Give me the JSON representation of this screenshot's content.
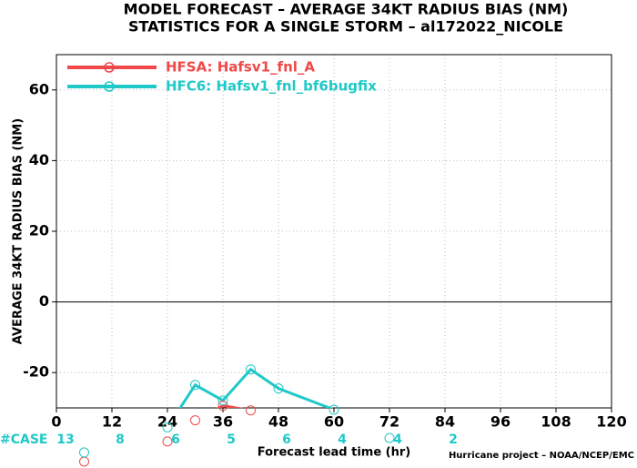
{
  "chart_data": {
    "type": "line",
    "title": "MODEL FORECAST – AVERAGE 34KT RADIUS BIAS (NM)",
    "subtitle": "STATISTICS FOR A SINGLE STORM – al172022_NICOLE",
    "x_label": "Forecast lead time (hr)",
    "y_label": "AVERAGE 34KT RADIUS BIAS (NM)",
    "footer": "Hurricane project – NOAA/NCEP/EMC",
    "x": [
      6,
      24,
      30,
      36,
      42,
      48,
      60,
      72
    ],
    "series": [
      {
        "name": "HFSA: Hafsv1_fnl_A",
        "color": "#f04848",
        "values": [
          -45.2,
          -39.5,
          -33.5,
          -29.4,
          -30.7,
          null,
          null,
          null
        ]
      },
      {
        "name": "HFC6: Hafsv1_fnl_bf6bugfix",
        "color": "#20c8c8",
        "values": [
          -42.6,
          -35.5,
          -23.5,
          -27.9,
          -19.1,
          -24.5,
          -30.5,
          -38.5
        ]
      }
    ],
    "xlim": [
      0,
      120
    ],
    "xticks": [
      0,
      12,
      24,
      36,
      48,
      60,
      72,
      84,
      96,
      108,
      120
    ],
    "ylim": [
      -30,
      70
    ],
    "yticks": [
      -20,
      0,
      20,
      40,
      60
    ],
    "grid": true,
    "legend": "top-left",
    "case_counts": {
      "label": "#CASE",
      "color": "#20c8c8",
      "x": [
        0,
        12,
        24,
        36,
        48,
        60,
        72,
        84
      ],
      "values": [
        13,
        8,
        6,
        5,
        6,
        4,
        4,
        2
      ]
    }
  }
}
